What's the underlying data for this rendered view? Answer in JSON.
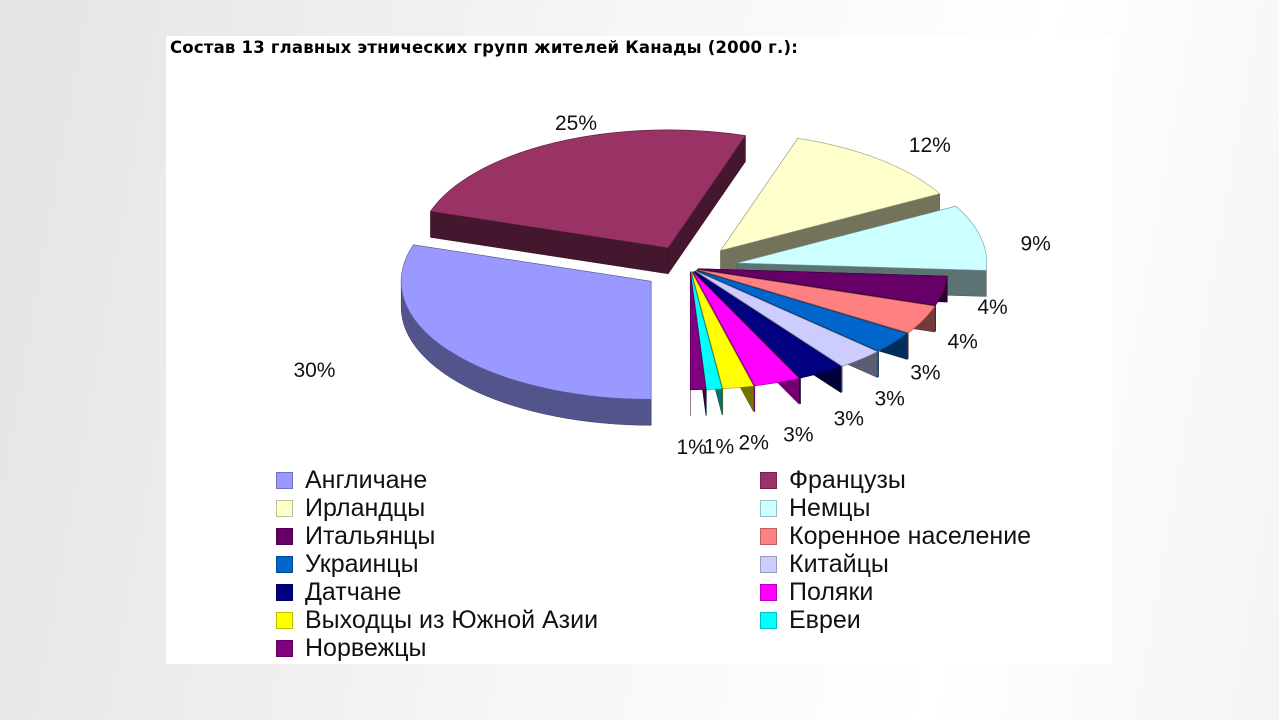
{
  "chart_data": {
    "type": "pie",
    "title": "Состав 13 главных этнических групп жителей Канады (2000 г.):",
    "slices": [
      {
        "name": "Англичане",
        "value": 30,
        "label": "30%",
        "color": "#9999ff"
      },
      {
        "name": "Французы",
        "value": 25,
        "label": "25%",
        "color": "#993366"
      },
      {
        "name": "Ирландцы",
        "value": 12,
        "label": "12%",
        "color": "#ffffcc"
      },
      {
        "name": "Немцы",
        "value": 9,
        "label": "9%",
        "color": "#ccffff"
      },
      {
        "name": "Итальянцы",
        "value": 4,
        "label": "4%",
        "color": "#660066"
      },
      {
        "name": "Коренное население",
        "value": 4,
        "label": "4%",
        "color": "#ff8080"
      },
      {
        "name": "Украинцы",
        "value": 3,
        "label": "3%",
        "color": "#0066cc"
      },
      {
        "name": "Китайцы",
        "value": 3,
        "label": "3%",
        "color": "#ccccff"
      },
      {
        "name": "Датчане",
        "value": 3,
        "label": "3%",
        "color": "#000080"
      },
      {
        "name": "Поляки",
        "value": 3,
        "label": "3%",
        "color": "#ff00ff"
      },
      {
        "name": "Выходцы из Южной Азии",
        "value": 2,
        "label": "2%",
        "color": "#ffff00"
      },
      {
        "name": "Евреи",
        "value": 1,
        "label": "1%",
        "color": "#00ffff"
      },
      {
        "name": "Норвежцы",
        "value": 1,
        "label": "1%",
        "color": "#800080"
      }
    ],
    "legend_position": "bottom"
  }
}
